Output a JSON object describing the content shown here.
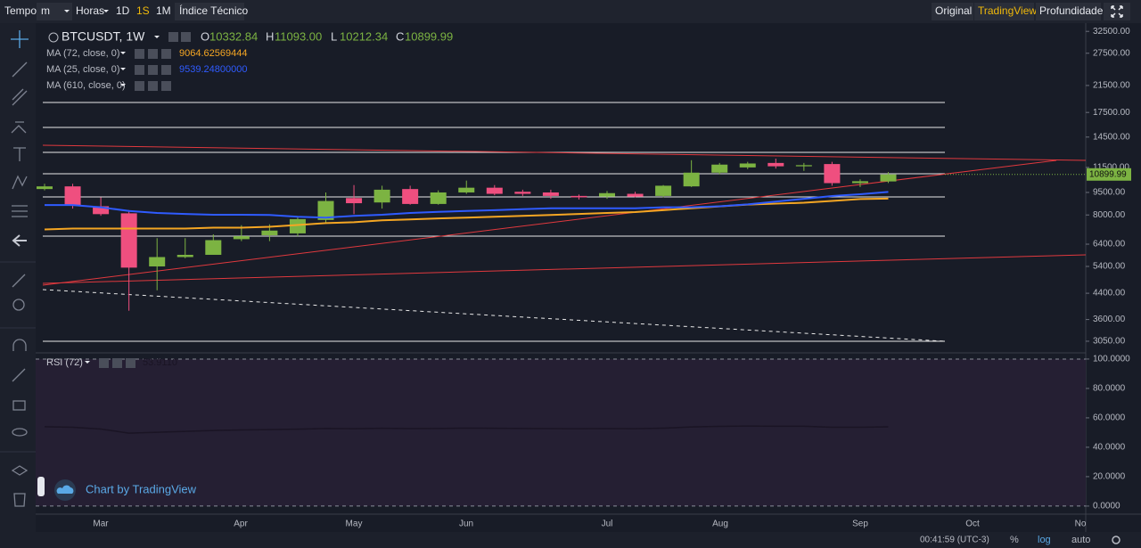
{
  "toolbar": {
    "left": [
      "Tempo",
      "m",
      "Horas",
      "1D",
      "1S",
      "1M",
      "Índice Técnico"
    ],
    "right": [
      "Original",
      "TradingView",
      "Profundidade"
    ]
  },
  "watermark": "Chart by TradingView",
  "status_bar": {
    "clock": "00:41:59 (UTC-3)",
    "percent": "%",
    "log": "log",
    "auto": "auto"
  },
  "chart_data": [
    {
      "type": "candlestick",
      "title": "BTCUSDT, 1W",
      "log_scale": true,
      "ylim": [
        2810,
        34600
      ],
      "yticks": [
        {
          "value": 32500,
          "label": "32500.00"
        },
        {
          "value": 27500,
          "label": "27500.00"
        },
        {
          "value": 21500,
          "label": "21500.00"
        },
        {
          "value": 17500,
          "label": "17500.00"
        },
        {
          "value": 14500,
          "label": "14500.00"
        },
        {
          "value": 11500,
          "label": "11500.00"
        },
        {
          "value": 9500,
          "label": "9500.00"
        },
        {
          "value": 8000,
          "label": "8000.00"
        },
        {
          "value": 6400,
          "label": "6400.00"
        },
        {
          "value": 5400,
          "label": "5400.00"
        },
        {
          "value": 4400,
          "label": "4400.00"
        },
        {
          "value": 3600,
          "label": "3600.00"
        },
        {
          "value": 3050,
          "label": "3050.00"
        }
      ],
      "x_labels": [
        "Mar",
        "Apr",
        "May",
        "Jun",
        "Jul",
        "Aug",
        "Sep",
        "Oct",
        "No"
      ],
      "up_color": "#7cb342",
      "down_color": "#ef4f7f",
      "open": [
        9750,
        9950,
        8550,
        8100,
        5400,
        5800,
        5900,
        6650,
        6850,
        6950,
        7700,
        9100,
        8800,
        9750,
        8700,
        9500,
        9850,
        9550,
        9500,
        9250,
        9200,
        9400,
        9250,
        9950,
        11050,
        11500,
        11900,
        11600,
        11800,
        10200,
        10332.84
      ],
      "high": [
        10150,
        10150,
        9150,
        8300,
        6700,
        6700,
        6900,
        7400,
        7450,
        7900,
        9500,
        10050,
        10000,
        10000,
        9650,
        10400,
        10050,
        9700,
        9700,
        9350,
        9600,
        9550,
        10050,
        12150,
        11900,
        12000,
        12300,
        11900,
        12000,
        10500,
        11093
      ],
      "low": [
        9650,
        8400,
        7950,
        3850,
        4500,
        5750,
        5900,
        6550,
        6550,
        6800,
        7500,
        8050,
        8400,
        8650,
        8650,
        9400,
        9300,
        9250,
        9050,
        9000,
        9050,
        9150,
        9150,
        9900,
        10900,
        11350,
        11400,
        11200,
        10000,
        9900,
        10212.34
      ],
      "close": [
        9950,
        8600,
        8050,
        5350,
        5800,
        5900,
        6600,
        6800,
        7100,
        7750,
        8900,
        8750,
        9700,
        8700,
        9500,
        9850,
        9400,
        9400,
        9250,
        9150,
        9450,
        9200,
        10000,
        11050,
        11750,
        11850,
        11600,
        11700,
        10200,
        10350,
        10899.99
      ],
      "ohlc_labels": [
        {
          "key": "O",
          "label": "10332.84"
        },
        {
          "key": "H",
          "label": "11093.00"
        },
        {
          "key": "L",
          "label": "10212.34"
        },
        {
          "key": "C",
          "label": "10899.99"
        }
      ],
      "series": [
        {
          "name": "MA (72, close, 0)",
          "color": "#f5a623",
          "value_label": "9064.62569444",
          "values": [
            7160,
            7210,
            7210,
            7210,
            7210,
            7210,
            7260,
            7260,
            7310,
            7410,
            7520,
            7570,
            7680,
            7730,
            7790,
            7840,
            7890,
            7945,
            8000,
            8060,
            8120,
            8180,
            8300,
            8420,
            8540,
            8660,
            8720,
            8780,
            8900,
            9030,
            9064.62569444
          ]
        },
        {
          "name": "MA (25, close, 0)",
          "color": "#2f5bff",
          "value_label": "9539.24800000",
          "values": [
            8630,
            8630,
            8480,
            8250,
            8120,
            8060,
            8010,
            8010,
            8000,
            7890,
            7840,
            7945,
            8010,
            8120,
            8190,
            8250,
            8300,
            8360,
            8420,
            8420,
            8420,
            8420,
            8480,
            8480,
            8550,
            8670,
            8860,
            9050,
            9240,
            9370,
            9539.248
          ]
        },
        {
          "name": "MA (610, close, 0)",
          "color": "#9e9e9e",
          "values": [
            null,
            null,
            null,
            null,
            null,
            null,
            null,
            null,
            null,
            null,
            null,
            null,
            null,
            null,
            null,
            null,
            null,
            null,
            null,
            null,
            null,
            null,
            null,
            null,
            null,
            null,
            null,
            null,
            null,
            null,
            null
          ]
        }
      ]
    },
    {
      "type": "line",
      "ylim": [
        -5.5,
        103.6
      ],
      "yticks": [
        {
          "value": 100,
          "label": "100.0000"
        },
        {
          "value": 80,
          "label": "80.0000"
        },
        {
          "value": 60,
          "label": "60.0000"
        },
        {
          "value": 40,
          "label": "40.0000"
        },
        {
          "value": 20,
          "label": "20.0000"
        },
        {
          "value": 0,
          "label": "0.0000"
        }
      ],
      "series": [
        {
          "name": "RSI (72)",
          "color": "#1a1424",
          "value_label": "53.9110",
          "values": [
            54.0,
            53.6,
            52.4,
            49.6,
            50.2,
            50.8,
            51.4,
            51.8,
            52.0,
            52.3,
            52.8,
            52.6,
            52.9,
            52.7,
            52.8,
            53.0,
            52.9,
            52.8,
            52.7,
            52.6,
            52.7,
            52.6,
            53.0,
            53.8,
            54.2,
            54.4,
            54.3,
            54.3,
            53.6,
            53.6,
            53.911
          ]
        }
      ]
    }
  ]
}
